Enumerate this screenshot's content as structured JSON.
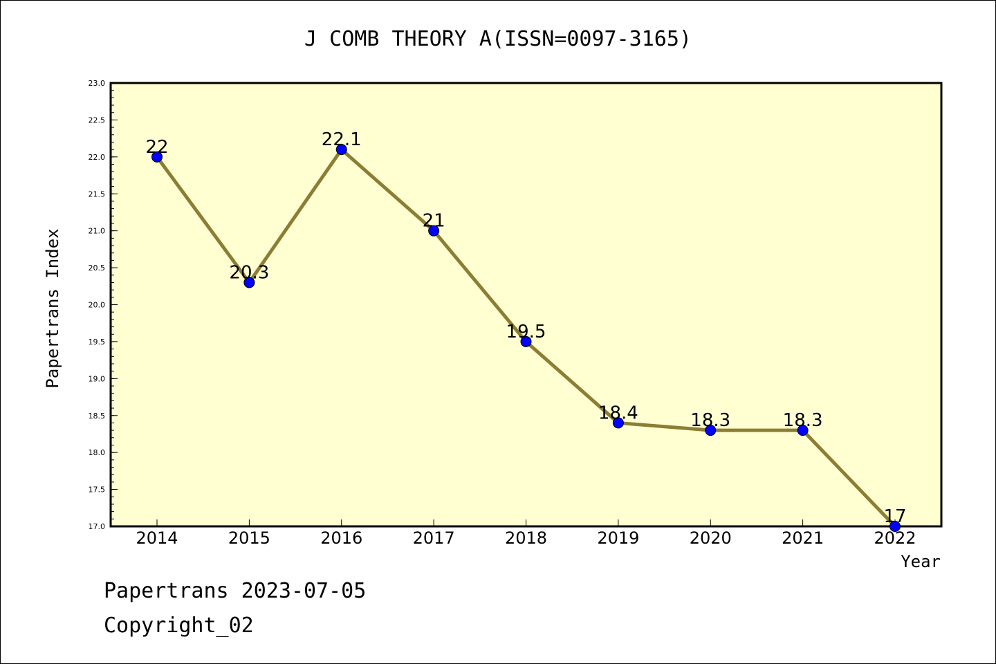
{
  "chart_data": {
    "type": "line",
    "title": "J COMB THEORY A(ISSN=0097-3165)",
    "xlabel": "Year",
    "ylabel": "Papertrans Index",
    "x": [
      "2014",
      "2015",
      "2016",
      "2017",
      "2018",
      "2019",
      "2020",
      "2021",
      "2022"
    ],
    "series": [
      {
        "values": [
          22,
          20.3,
          22.1,
          21,
          19.5,
          18.4,
          18.3,
          18.3,
          17
        ]
      }
    ],
    "data_labels": [
      "22",
      "20.3",
      "22.1",
      "21",
      "19.5",
      "18.4",
      "18.3",
      "18.3",
      "17"
    ],
    "ylim": [
      17.0,
      23.0
    ],
    "yticks": [
      "17.0",
      "17.5",
      "18.0",
      "18.5",
      "19.0",
      "19.5",
      "20.0",
      "20.5",
      "21.0",
      "21.5",
      "22.0",
      "22.5",
      "23.0"
    ],
    "grid": false,
    "colors": {
      "plot_background": "#ffffd2",
      "line": "#8b7d33",
      "marker": "#0000ff"
    }
  },
  "footer": {
    "line1": "Papertrans 2023-07-05",
    "line2": "Copyright_02"
  }
}
